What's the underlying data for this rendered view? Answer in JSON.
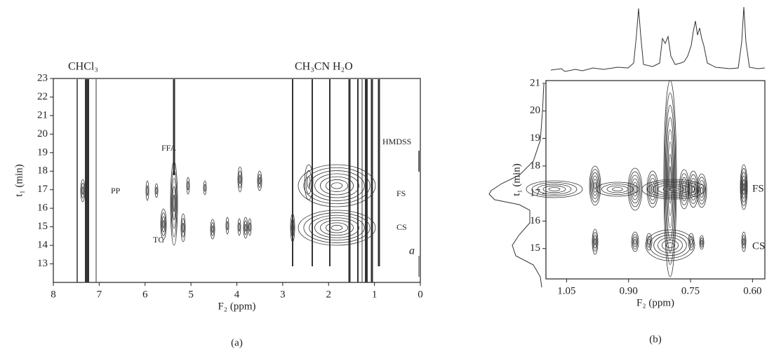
{
  "chart_data": [
    {
      "type": "contour",
      "panel_label": "(a)",
      "xlabel": "F₂ (ppm)",
      "ylabel": "t₁ (min)",
      "xlim": [
        8,
        0
      ],
      "xticks": [
        8,
        7,
        6,
        5,
        4,
        3,
        2,
        1,
        0
      ],
      "ylim": [
        12,
        23
      ],
      "yticks": [
        13,
        14,
        15,
        16,
        17,
        18,
        19,
        20,
        21,
        22,
        23
      ],
      "annotations": [
        "CHCl₃",
        "CH₃CN H₂O",
        "FFA",
        "HMDSS",
        "PP",
        "FS",
        "CS",
        "TG",
        "a"
      ]
    },
    {
      "type": "contour",
      "panel_label": "(b)",
      "xlabel": "F₂ (ppm)",
      "ylabel": "t₁ (min)",
      "xlim": [
        1.1,
        0.57
      ],
      "xticks": [
        {
          "value": 1.05,
          "label": "1.05"
        },
        {
          "value": 0.9,
          "label": "0.90"
        },
        {
          "value": 0.75,
          "label": "0.75"
        },
        {
          "value": 0.6,
          "label": "0.60"
        }
      ],
      "ylim": [
        13.9,
        21.1
      ],
      "yticks": [
        15,
        16,
        17,
        18,
        19,
        20,
        21
      ],
      "annotations": [
        "FS",
        "CS"
      ]
    }
  ]
}
